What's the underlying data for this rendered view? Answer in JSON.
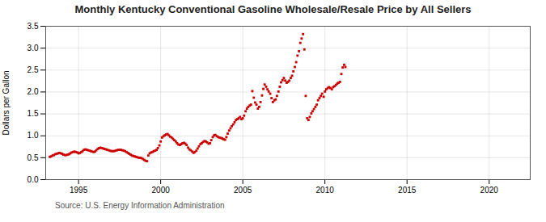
{
  "chart_data": {
    "type": "scatter",
    "title": "Monthly Kentucky Conventional Gasoline Wholesale/Resale Price by All Sellers",
    "ylabel": "Dollars per Gallon",
    "annotation": "Source: U.S. Energy Information Administration",
    "color": "#CC0000",
    "marker": "square",
    "grid": true,
    "xlim": [
      1993.0,
      2022.5
    ],
    "ylim": [
      0.0,
      3.5
    ],
    "xticks": [
      1995,
      2000,
      2005,
      2010,
      2015,
      2020
    ],
    "yticks": [
      {
        "value": 0,
        "label": "0.0"
      },
      0.5,
      {
        "value": 1,
        "label": "1.0"
      },
      1.5,
      {
        "value": 2,
        "label": "2.0"
      },
      2.5,
      {
        "value": 3,
        "label": "3.0"
      },
      3.5
    ],
    "x": [
      1993.25,
      1993.33,
      1993.42,
      1993.5,
      1993.58,
      1993.67,
      1993.75,
      1993.83,
      1993.92,
      1994.0,
      1994.08,
      1994.17,
      1994.25,
      1994.33,
      1994.42,
      1994.5,
      1994.58,
      1994.67,
      1994.75,
      1994.83,
      1994.92,
      1995.0,
      1995.08,
      1995.17,
      1995.25,
      1995.33,
      1995.42,
      1995.5,
      1995.58,
      1995.67,
      1995.75,
      1995.83,
      1995.92,
      1996.0,
      1996.08,
      1996.17,
      1996.25,
      1996.33,
      1996.42,
      1996.5,
      1996.58,
      1996.67,
      1996.75,
      1996.83,
      1996.92,
      1997.0,
      1997.08,
      1997.17,
      1997.25,
      1997.33,
      1997.42,
      1997.5,
      1997.58,
      1997.67,
      1997.75,
      1997.83,
      1997.92,
      1998.0,
      1998.08,
      1998.17,
      1998.25,
      1998.33,
      1998.42,
      1998.5,
      1998.58,
      1998.67,
      1998.75,
      1998.83,
      1998.92,
      1999.0,
      1999.08,
      1999.17,
      1999.25,
      1999.33,
      1999.42,
      1999.5,
      1999.58,
      1999.67,
      1999.75,
      1999.83,
      1999.92,
      2000.0,
      2000.08,
      2000.17,
      2000.25,
      2000.33,
      2000.42,
      2000.5,
      2000.58,
      2000.67,
      2000.75,
      2000.83,
      2000.92,
      2001.0,
      2001.08,
      2001.17,
      2001.25,
      2001.33,
      2001.42,
      2001.5,
      2001.58,
      2001.67,
      2001.75,
      2001.83,
      2001.92,
      2002.0,
      2002.08,
      2002.17,
      2002.25,
      2002.33,
      2002.42,
      2002.5,
      2002.58,
      2002.67,
      2002.75,
      2002.83,
      2002.92,
      2003.0,
      2003.08,
      2003.17,
      2003.25,
      2003.33,
      2003.42,
      2003.5,
      2003.58,
      2003.67,
      2003.75,
      2003.83,
      2003.92,
      2004.0,
      2004.08,
      2004.17,
      2004.25,
      2004.33,
      2004.42,
      2004.5,
      2004.58,
      2004.67,
      2004.75,
      2004.83,
      2004.92,
      2005.0,
      2005.08,
      2005.17,
      2005.25,
      2005.33,
      2005.42,
      2005.5,
      2005.58,
      2005.67,
      2005.75,
      2005.83,
      2005.92,
      2006.0,
      2006.08,
      2006.17,
      2006.25,
      2006.33,
      2006.42,
      2006.5,
      2006.58,
      2006.67,
      2006.75,
      2006.83,
      2006.92,
      2007.0,
      2007.08,
      2007.17,
      2007.25,
      2007.33,
      2007.42,
      2007.5,
      2007.58,
      2007.67,
      2007.75,
      2007.83,
      2007.92,
      2008.0,
      2008.08,
      2008.17,
      2008.25,
      2008.33,
      2008.42,
      2008.5,
      2008.58,
      2008.67,
      2008.75,
      2008.83,
      2008.92,
      2009.0,
      2009.08,
      2009.17,
      2009.25,
      2009.33,
      2009.42,
      2009.5,
      2009.58,
      2009.67,
      2009.75,
      2009.83,
      2009.92,
      2010.0,
      2010.08,
      2010.17,
      2010.25,
      2010.33,
      2010.42,
      2010.5,
      2010.58,
      2010.67,
      2010.75,
      2010.83,
      2010.92,
      2011.0,
      2011.08,
      2011.17,
      2011.25
    ],
    "values": [
      0.52,
      0.53,
      0.55,
      0.56,
      0.58,
      0.59,
      0.6,
      0.61,
      0.6,
      0.59,
      0.57,
      0.56,
      0.56,
      0.57,
      0.58,
      0.6,
      0.62,
      0.63,
      0.64,
      0.63,
      0.62,
      0.6,
      0.61,
      0.63,
      0.65,
      0.68,
      0.69,
      0.68,
      0.67,
      0.66,
      0.65,
      0.64,
      0.63,
      0.64,
      0.67,
      0.7,
      0.72,
      0.73,
      0.72,
      0.71,
      0.7,
      0.69,
      0.68,
      0.67,
      0.66,
      0.65,
      0.65,
      0.65,
      0.66,
      0.67,
      0.68,
      0.68,
      0.68,
      0.67,
      0.66,
      0.65,
      0.63,
      0.61,
      0.59,
      0.57,
      0.55,
      0.54,
      0.53,
      0.52,
      0.51,
      0.5,
      0.5,
      0.49,
      0.47,
      0.45,
      0.43,
      0.42,
      0.55,
      0.6,
      0.62,
      0.63,
      0.65,
      0.66,
      0.68,
      0.72,
      0.78,
      0.87,
      0.96,
      0.99,
      1.01,
      1.03,
      1.04,
      1.01,
      0.98,
      0.96,
      0.93,
      0.9,
      0.87,
      0.83,
      0.8,
      0.79,
      0.81,
      0.83,
      0.84,
      0.82,
      0.79,
      0.73,
      0.69,
      0.67,
      0.64,
      0.61,
      0.63,
      0.66,
      0.71,
      0.76,
      0.81,
      0.83,
      0.86,
      0.88,
      0.87,
      0.85,
      0.82,
      0.83,
      0.9,
      0.97,
      1.01,
      1.02,
      0.99,
      0.97,
      0.96,
      0.95,
      0.94,
      0.92,
      0.91,
      0.97,
      1.05,
      1.12,
      1.17,
      1.22,
      1.26,
      1.31,
      1.36,
      1.38,
      1.4,
      1.43,
      1.38,
      1.4,
      1.46,
      1.56,
      1.62,
      1.66,
      1.69,
      1.71,
      2.02,
      1.87,
      1.76,
      1.71,
      1.62,
      1.66,
      1.77,
      1.92,
      2.07,
      2.17,
      2.12,
      2.06,
      2.01,
      1.96,
      1.86,
      1.77,
      1.81,
      1.83,
      1.91,
      2.01,
      2.12,
      2.22,
      2.27,
      2.32,
      2.26,
      2.21,
      2.23,
      2.26,
      2.32,
      2.37,
      2.47,
      2.57,
      2.68,
      2.83,
      2.93,
      3.12,
      3.22,
      3.32,
      2.97,
      1.91,
      1.4,
      1.36,
      1.43,
      1.51,
      1.56,
      1.61,
      1.66,
      1.71,
      1.81,
      1.86,
      1.91,
      1.96,
      1.89,
      2.01,
      2.06,
      2.09,
      2.11,
      2.09,
      2.06,
      2.11,
      2.13,
      2.16,
      2.19,
      2.21,
      2.23,
      2.41,
      2.56,
      2.62,
      2.57
    ]
  }
}
